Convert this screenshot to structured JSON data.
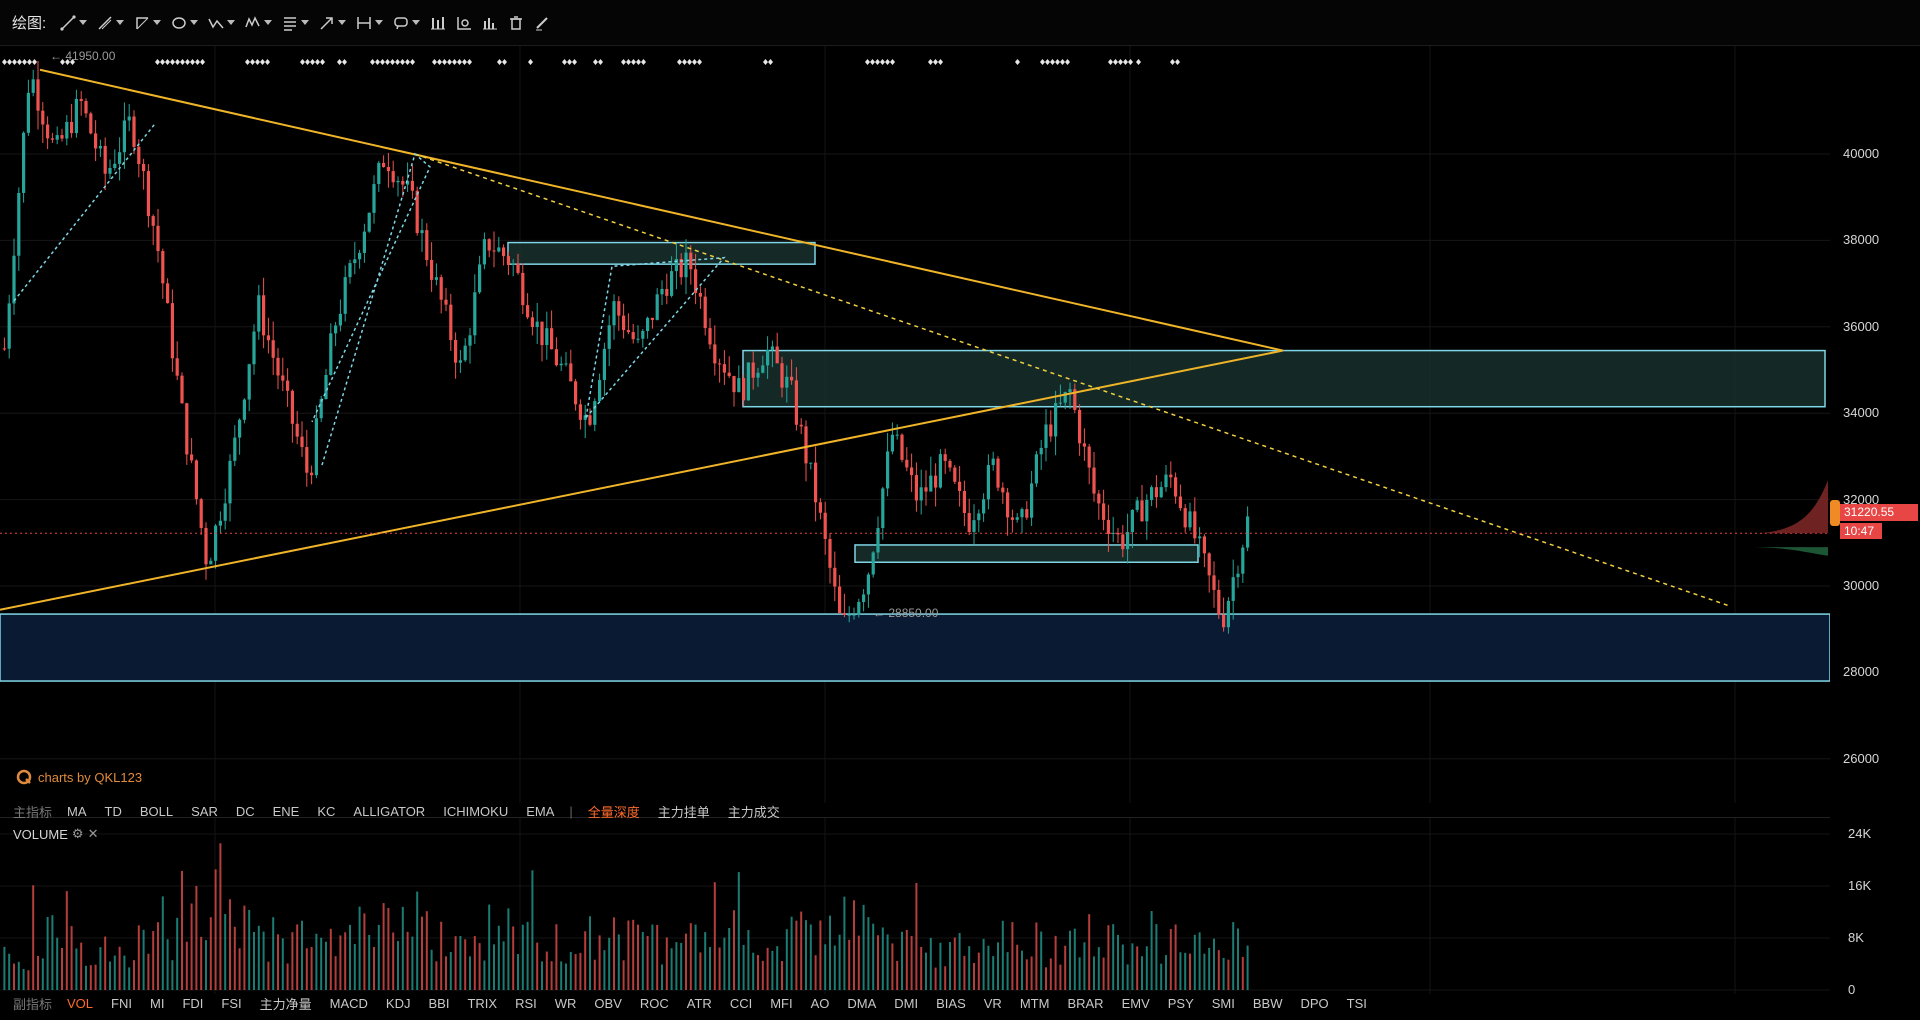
{
  "toolbar": {
    "label": "绘图:",
    "tools": [
      {
        "icon": "trend-line-icon",
        "has_menu": true
      },
      {
        "icon": "ray-line-icon",
        "has_menu": true
      },
      {
        "icon": "channel-icon",
        "has_menu": true
      },
      {
        "icon": "ellipse-icon",
        "has_menu": true
      },
      {
        "icon": "pattern-icon",
        "has_menu": true
      },
      {
        "icon": "elliott-wave-icon",
        "has_menu": true
      },
      {
        "icon": "fibonacci-icon",
        "has_menu": true
      },
      {
        "icon": "arrow-icon",
        "has_menu": true
      },
      {
        "icon": "measure-icon",
        "has_menu": true
      },
      {
        "icon": "comment-icon",
        "has_menu": true
      },
      {
        "icon": "bar-chart-icon",
        "has_menu": false
      },
      {
        "icon": "indicator-chart-icon",
        "has_menu": false
      },
      {
        "icon": "histogram-icon",
        "has_menu": false
      },
      {
        "icon": "trash-icon",
        "has_menu": false
      },
      {
        "icon": "pencil-icon",
        "has_menu": false
      }
    ]
  },
  "price_axis": {
    "labels": [
      "40000",
      "38000",
      "36000",
      "34000",
      "32000",
      "30000",
      "28000",
      "26000"
    ]
  },
  "volume_axis": {
    "labels": [
      "24K",
      "16K",
      "8K",
      "0"
    ]
  },
  "current_price": "31220.55",
  "countdown": "10:47",
  "annotations": {
    "high": "41950.00",
    "low": "28850.00"
  },
  "watermark": "charts by QKL123",
  "main_indicators": {
    "title": "主指标",
    "items": [
      "MA",
      "TD",
      "BOLL",
      "SAR",
      "DC",
      "ENE",
      "KC",
      "ALLIGATOR",
      "ICHIMOKU",
      "EMA"
    ],
    "extras": [
      "全量深度",
      "主力挂单",
      "主力成交"
    ]
  },
  "volume_panel": {
    "title": "VOLUME"
  },
  "sub_indicators": {
    "title": "副指标",
    "items": [
      "VOL",
      "FNI",
      "MI",
      "FDI",
      "FSI",
      "主力净量",
      "MACD",
      "KDJ",
      "BBI",
      "TRIX",
      "RSI",
      "WR",
      "OBV",
      "ROC",
      "ATR",
      "CCI",
      "MFI",
      "AO",
      "DMA",
      "DMI",
      "BIAS",
      "VR",
      "MTM",
      "BRAR",
      "EMV",
      "PSY",
      "SMI",
      "BBW",
      "DPO",
      "TSI"
    ],
    "active": "VOL"
  },
  "colors": {
    "up": "#26a69a",
    "down": "#ef5350",
    "trendline": "#f0b429",
    "zone": "#7fd6e6",
    "accent": "#ff6b2b"
  },
  "chart_data": {
    "type": "candlestick",
    "y_range": [
      25000,
      42500
    ],
    "price_path": [
      35500,
      41950,
      40000,
      41200,
      39500,
      40800,
      38000,
      34000,
      30500,
      33000,
      36500,
      34500,
      32500,
      36000,
      38000,
      40000,
      39000,
      37000,
      35000,
      38000,
      37500,
      36000,
      35000,
      33800,
      36500,
      35500,
      37000,
      37500,
      35500,
      34500,
      35500,
      34500,
      32000,
      29000,
      30200,
      33500,
      32000,
      32800,
      31500,
      32800,
      31200,
      33500,
      34500,
      32000,
      31000,
      32000,
      32500,
      31000,
      29200,
      31500
    ],
    "volume_path": [
      6,
      9,
      8,
      7,
      6,
      8,
      10,
      14,
      22,
      12,
      9,
      8,
      7,
      9,
      10,
      11,
      9,
      8,
      7,
      10,
      9,
      8,
      7,
      8,
      9,
      8,
      7,
      9,
      8,
      7,
      8,
      9,
      12,
      17,
      10,
      8,
      7,
      8,
      7,
      9,
      8,
      7,
      9,
      8,
      7,
      9,
      8,
      7,
      9,
      7
    ]
  }
}
